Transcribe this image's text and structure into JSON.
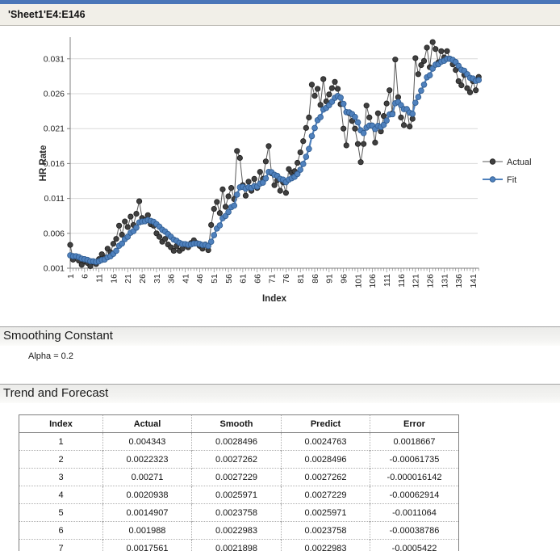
{
  "window": {
    "title": "'Sheet1'E4:E146"
  },
  "chart_data": {
    "type": "line",
    "title": "",
    "xlabel": "Index",
    "ylabel": "HR Rate",
    "x_start": 1,
    "n_points": 143,
    "x_tick_labels": [
      1,
      6,
      11,
      16,
      21,
      26,
      31,
      36,
      41,
      46,
      51,
      56,
      61,
      66,
      71,
      76,
      81,
      86,
      91,
      96,
      101,
      106,
      111,
      116,
      121,
      126,
      131,
      136,
      141
    ],
    "y_tick_labels": [
      "0.001",
      "0.006",
      "0.011",
      "0.016",
      "0.021",
      "0.026",
      "0.031"
    ],
    "y_ticks": [
      0.001,
      0.006,
      0.011,
      0.016,
      0.021,
      0.026,
      0.031
    ],
    "ylim": [
      0.001,
      0.0345
    ],
    "grid": "horizontal",
    "legend_position": "right",
    "legend": [
      "Actual",
      "Fit"
    ],
    "alpha": 0.2,
    "initial_smooth": 0.0024763,
    "fit_rule": "smooth[t]=alpha*actual[t]+(1-alpha)*smooth[t-1]; plotted Fit = smooth",
    "series": [
      {
        "name": "Actual",
        "marker_color": "#404040",
        "line_color": "#595959",
        "values": [
          0.004343,
          0.0022323,
          0.00271,
          0.0020938,
          0.0014907,
          0.001988,
          0.0017561,
          0.0013,
          0.0019,
          0.0016,
          0.0023,
          0.003,
          0.0025,
          0.0038,
          0.0033,
          0.0045,
          0.0052,
          0.0071,
          0.0058,
          0.0077,
          0.0069,
          0.0084,
          0.0072,
          0.0088,
          0.0106,
          0.0082,
          0.0079,
          0.0086,
          0.0073,
          0.0071,
          0.006,
          0.0055,
          0.0048,
          0.0052,
          0.0044,
          0.004,
          0.0035,
          0.0042,
          0.0035,
          0.0038,
          0.0044,
          0.004,
          0.0046,
          0.005,
          0.0046,
          0.0042,
          0.0038,
          0.0044,
          0.0036,
          0.0072,
          0.0095,
          0.0105,
          0.0089,
          0.0123,
          0.0098,
          0.0113,
          0.0125,
          0.0109,
          0.0178,
          0.0168,
          0.0129,
          0.0114,
          0.0134,
          0.0121,
          0.0138,
          0.0125,
          0.0148,
          0.0138,
          0.0163,
          0.0185,
          0.0146,
          0.0129,
          0.0136,
          0.0121,
          0.0133,
          0.0118,
          0.0152,
          0.0147,
          0.0149,
          0.0161,
          0.0176,
          0.0192,
          0.0211,
          0.0226,
          0.0273,
          0.0257,
          0.0267,
          0.0244,
          0.0281,
          0.0249,
          0.0259,
          0.0268,
          0.0277,
          0.0267,
          0.0245,
          0.021,
          0.0186,
          0.0232,
          0.0221,
          0.021,
          0.0188,
          0.0162,
          0.0188,
          0.0243,
          0.0226,
          0.0214,
          0.019,
          0.0232,
          0.0206,
          0.0228,
          0.0246,
          0.0265,
          0.0232,
          0.0309,
          0.0255,
          0.0226,
          0.0215,
          0.0238,
          0.0213,
          0.0224,
          0.0311,
          0.0288,
          0.0301,
          0.0307,
          0.0326,
          0.0298,
          0.0334,
          0.0324,
          0.0305,
          0.0321,
          0.0312,
          0.0321,
          0.031,
          0.0302,
          0.0294,
          0.0278,
          0.0272,
          0.0287,
          0.0268,
          0.0262,
          0.0278,
          0.0265,
          0.0284
        ]
      },
      {
        "name": "Fit",
        "marker_color": "#4f81bd",
        "line_color": "#4f81bd",
        "derived": "exponential_smoothing_of_Actual"
      }
    ]
  },
  "sections": {
    "smoothing": {
      "title": "Smoothing Constant",
      "alpha_line": "Alpha = 0.2"
    },
    "trend": {
      "title": "Trend and Forecast"
    }
  },
  "table": {
    "headers": [
      "Index",
      "Actual",
      "Smooth",
      "Predict",
      "Error"
    ],
    "rows": [
      [
        "1",
        "0.004343",
        "0.0028496",
        "0.0024763",
        "0.0018667"
      ],
      [
        "2",
        "0.0022323",
        "0.0027262",
        "0.0028496",
        "-0.00061735"
      ],
      [
        "3",
        "0.00271",
        "0.0027229",
        "0.0027262",
        "-0.000016142"
      ],
      [
        "4",
        "0.0020938",
        "0.0025971",
        "0.0027229",
        "-0.00062914"
      ],
      [
        "5",
        "0.0014907",
        "0.0023758",
        "0.0025971",
        "-0.0011064"
      ],
      [
        "6",
        "0.001988",
        "0.0022983",
        "0.0023758",
        "-0.00038786"
      ],
      [
        "7",
        "0.0017561",
        "0.0021898",
        "0.0022983",
        "-0.0005422"
      ],
      [
        "",
        "",
        "",
        "",
        ""
      ]
    ]
  },
  "colors": {
    "top_strip": "#4a76b8",
    "title_bar_bg": "#f1efe8",
    "actual": "#404040",
    "fit": "#4f81bd",
    "gridline": "#d9d9d9",
    "axis": "#808080"
  }
}
